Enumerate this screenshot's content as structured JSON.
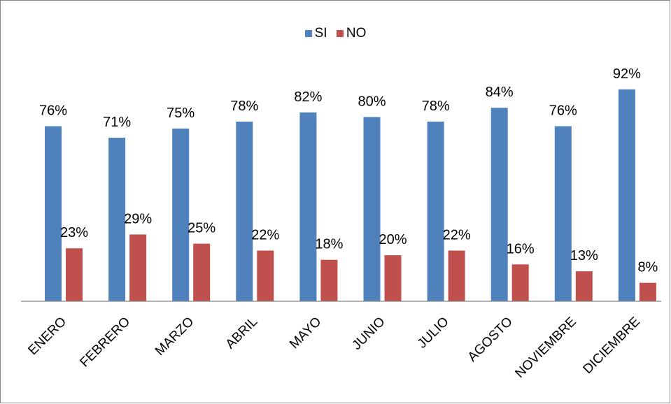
{
  "chart_data": {
    "type": "bar",
    "categories": [
      "ENERO",
      "FEBRERO",
      "MARZO",
      "ABRIL",
      "MAYO",
      "JUNIO",
      "JULIO",
      "AGOSTO",
      "NOVIEMBRE",
      "DICIEMBRE"
    ],
    "series": [
      {
        "name": "SI",
        "color": "#4F81BD",
        "values": [
          76,
          71,
          75,
          78,
          82,
          80,
          78,
          84,
          76,
          92
        ],
        "labels": [
          "76%",
          "71%",
          "75%",
          "78%",
          "82%",
          "80%",
          "78%",
          "84%",
          "76%",
          "92%"
        ]
      },
      {
        "name": "NO",
        "color": "#C0504D",
        "values": [
          23,
          29,
          25,
          22,
          18,
          20,
          22,
          16,
          13,
          8
        ],
        "labels": [
          "23%",
          "29%",
          "25%",
          "22%",
          "18%",
          "20%",
          "22%",
          "16%",
          "13%",
          "8%"
        ]
      }
    ],
    "title": "",
    "xlabel": "",
    "ylabel": "",
    "ylim": [
      0,
      100
    ],
    "grid": false,
    "legend_position": "top"
  }
}
